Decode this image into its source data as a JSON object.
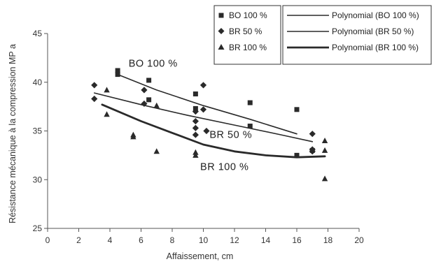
{
  "chart_data": {
    "type": "scatter",
    "xlabel": "Affaissement, cm",
    "ylabel": "Résistance mécanique à la compression MP a",
    "xlim": [
      0,
      20
    ],
    "ylim": [
      25,
      45
    ],
    "xticks": [
      0,
      2,
      4,
      6,
      8,
      10,
      12,
      14,
      16,
      18,
      20
    ],
    "yticks": [
      25,
      30,
      35,
      40,
      45
    ],
    "grid": false,
    "legend_placement": "top-right",
    "colors": {
      "points": "#2a2a2a",
      "lines": "#2a2a2a"
    },
    "series": [
      {
        "name": "BO 100 %",
        "marker": "square",
        "points": [
          [
            4.5,
            41.2
          ],
          [
            4.5,
            40.8
          ],
          [
            6.5,
            40.2
          ],
          [
            6.5,
            38.2
          ],
          [
            9.5,
            38.8
          ],
          [
            9.5,
            37.3
          ],
          [
            13.0,
            37.9
          ],
          [
            13.0,
            35.5
          ],
          [
            16.0,
            37.2
          ],
          [
            16.0,
            32.5
          ],
          [
            17.0,
            33.0
          ]
        ]
      },
      {
        "name": "BR 50 %",
        "marker": "diamond",
        "points": [
          [
            3.0,
            39.7
          ],
          [
            3.0,
            38.3
          ],
          [
            6.2,
            39.2
          ],
          [
            6.2,
            37.8
          ],
          [
            9.5,
            37.0
          ],
          [
            9.5,
            36.0
          ],
          [
            9.5,
            35.3
          ],
          [
            9.5,
            34.6
          ],
          [
            10.0,
            39.7
          ],
          [
            10.0,
            37.2
          ],
          [
            10.2,
            35.0
          ],
          [
            17.0,
            34.7
          ],
          [
            17.0,
            33.1
          ],
          [
            17.0,
            32.9
          ]
        ]
      },
      {
        "name": "BR 100 %",
        "marker": "triangle",
        "points": [
          [
            3.8,
            39.2
          ],
          [
            3.8,
            36.7
          ],
          [
            5.5,
            34.6
          ],
          [
            5.5,
            34.4
          ],
          [
            7.0,
            37.6
          ],
          [
            7.0,
            32.9
          ],
          [
            9.5,
            32.8
          ],
          [
            9.5,
            32.5
          ],
          [
            17.8,
            34.0
          ],
          [
            17.8,
            33.0
          ],
          [
            17.8,
            30.1
          ]
        ]
      }
    ],
    "trendlines": [
      {
        "name": "Polynomial (BO 100 %)",
        "series": "BO 100 %",
        "x_range": [
          4.5,
          16.0
        ],
        "points": [
          [
            4.5,
            40.8
          ],
          [
            7.0,
            39.2
          ],
          [
            10.0,
            37.6
          ],
          [
            13.0,
            36.2
          ],
          [
            16.0,
            34.7
          ]
        ],
        "stroke": 1.6
      },
      {
        "name": "Polynomial (BR 50 %)",
        "series": "BR 50 %",
        "x_range": [
          3.0,
          17.0
        ],
        "points": [
          [
            3.0,
            38.9
          ],
          [
            6.0,
            37.7
          ],
          [
            9.0,
            36.6
          ],
          [
            12.0,
            35.6
          ],
          [
            15.0,
            34.6
          ],
          [
            17.0,
            33.9
          ]
        ],
        "stroke": 1.6
      },
      {
        "name": "Polynomial (BR 100 %)",
        "series": "BR 100 %",
        "x_range": [
          3.5,
          17.8
        ],
        "points": [
          [
            3.5,
            37.7
          ],
          [
            6.0,
            36.0
          ],
          [
            8.0,
            34.8
          ],
          [
            10.0,
            33.6
          ],
          [
            12.0,
            32.9
          ],
          [
            14.0,
            32.5
          ],
          [
            16.0,
            32.3
          ],
          [
            17.8,
            32.4
          ]
        ],
        "stroke": 2.8
      }
    ],
    "annotations": [
      {
        "text": "BO 100 %",
        "x": 5.2,
        "y": 41.6
      },
      {
        "text": "BR 50 %",
        "x": 10.4,
        "y": 34.3
      },
      {
        "text": "BR 100 %",
        "x": 9.8,
        "y": 31.0
      }
    ]
  }
}
